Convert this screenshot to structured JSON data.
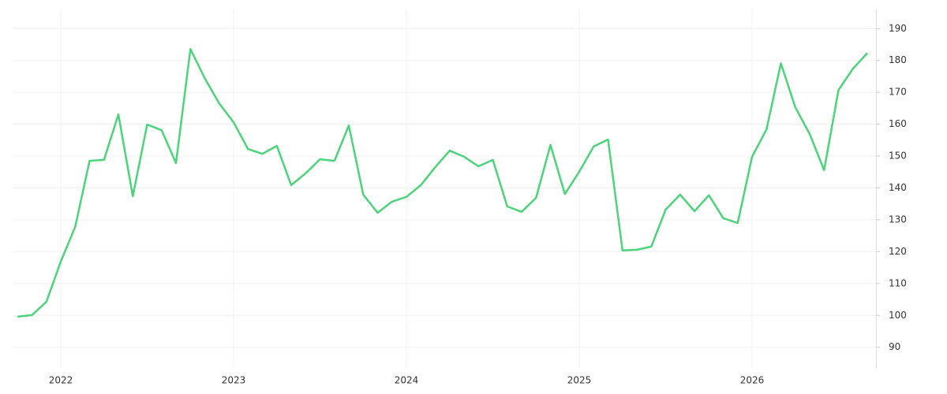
{
  "chart_data": {
    "type": "line",
    "x": [
      "2021-10",
      "2021-11",
      "2021-12",
      "2022-01",
      "2022-02",
      "2022-03",
      "2022-04",
      "2022-05",
      "2022-06",
      "2022-07",
      "2022-08",
      "2022-09",
      "2022-10",
      "2022-11",
      "2022-12",
      "2023-01",
      "2023-02",
      "2023-03",
      "2023-04",
      "2023-05",
      "2023-06",
      "2023-07",
      "2023-08",
      "2023-09",
      "2023-10",
      "2023-11",
      "2023-12",
      "2024-01",
      "2024-02",
      "2024-03",
      "2024-04",
      "2024-05",
      "2024-06",
      "2024-07",
      "2024-08",
      "2024-09",
      "2024-10",
      "2024-11",
      "2024-12",
      "2025-01",
      "2025-02",
      "2025-03",
      "2025-04",
      "2025-05",
      "2025-06",
      "2025-07",
      "2025-08",
      "2025-09",
      "2025-10",
      "2025-11",
      "2025-12",
      "2026-01",
      "2026-02",
      "2026-03",
      "2026-04",
      "2026-05",
      "2026-06",
      "2026-07",
      "2026-08",
      "2026-09"
    ],
    "series": [
      {
        "color": "#4cd47a",
        "values": [
          99.6,
          100.1,
          104.3,
          116.9,
          127.8,
          148.5,
          148.8,
          163.1,
          137.4,
          159.9,
          158.1,
          147.8,
          183.6,
          174.4,
          166.5,
          160.6,
          152.2,
          150.7,
          153.2,
          140.9,
          144.6,
          149.0,
          148.5,
          159.6,
          137.9,
          132.2,
          135.7,
          137.2,
          140.9,
          146.5,
          151.7,
          149.8,
          146.8,
          148.8,
          134.2,
          132.5,
          136.9,
          153.5,
          138.1,
          145.1,
          153.0,
          155.2,
          120.4,
          120.6,
          121.6,
          133.2,
          137.9,
          132.7,
          137.7,
          130.5,
          129.0,
          149.8,
          158.4,
          179.1,
          165.3,
          156.9,
          145.6,
          170.7,
          177.4,
          182.3
        ]
      }
    ],
    "xlim": [
      2021.72,
      2026.72
    ],
    "xticks": [
      2022,
      2023,
      2024,
      2025,
      2026
    ],
    "ylim": [
      84,
      196
    ],
    "yticks": [
      90,
      100,
      110,
      120,
      130,
      140,
      150,
      160,
      170,
      180,
      190
    ],
    "grid": true
  }
}
